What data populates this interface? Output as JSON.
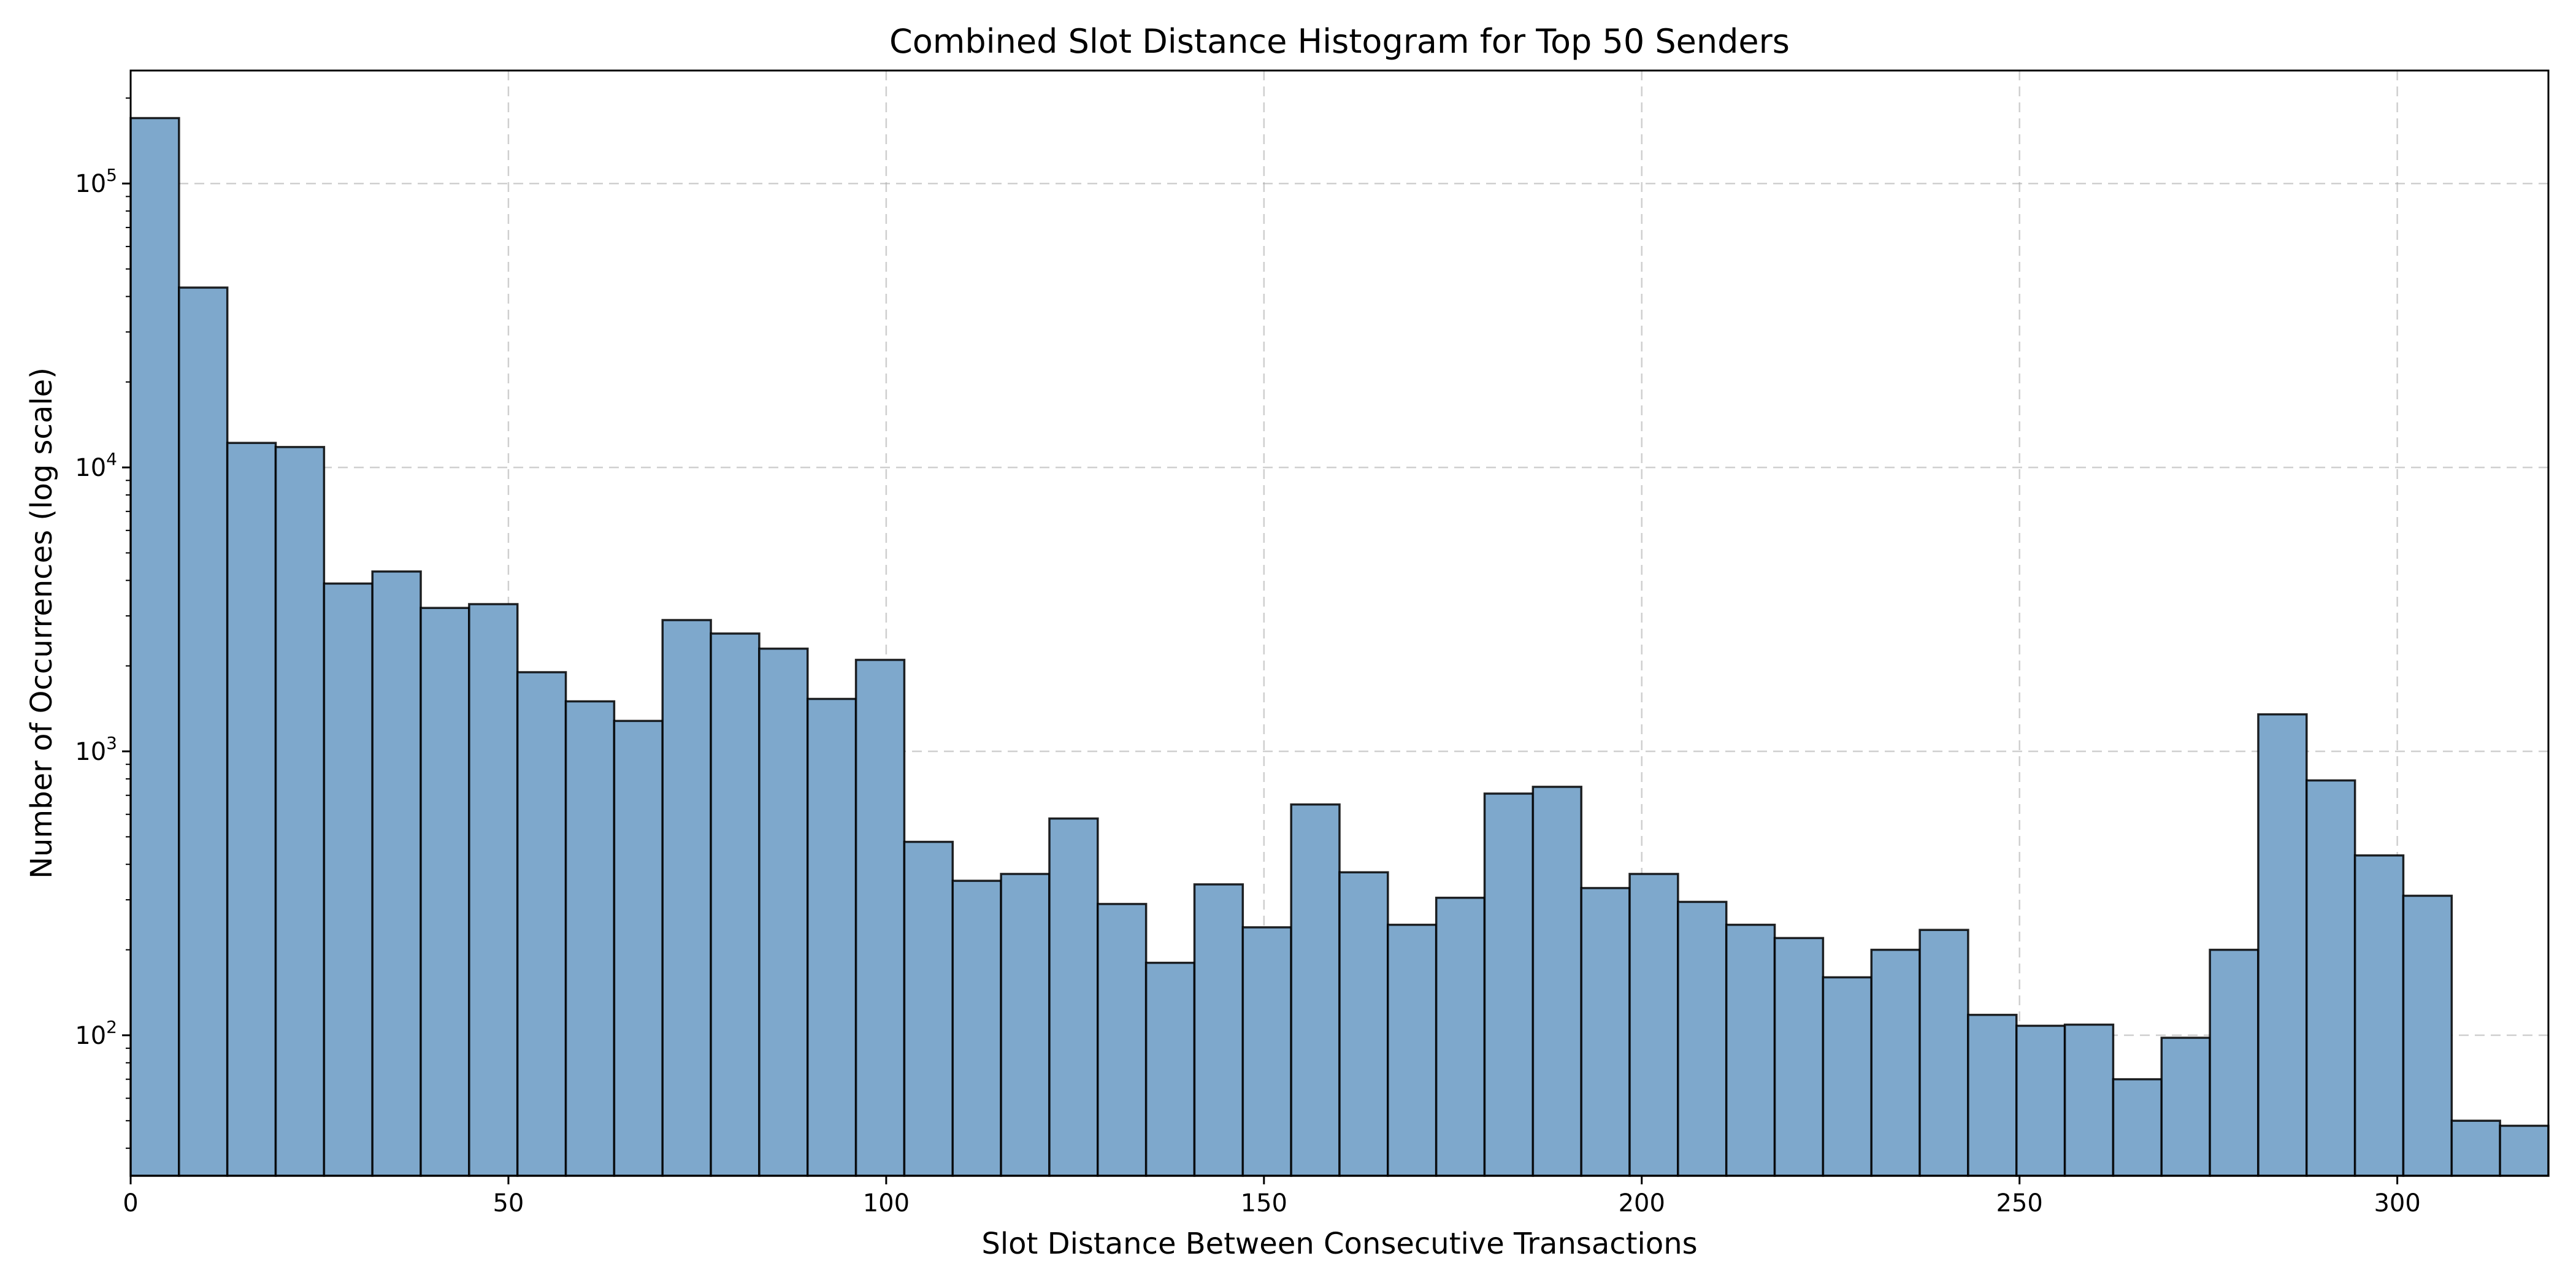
{
  "chart_data": {
    "type": "bar",
    "title": "Combined Slot Distance Histogram for Top 50 Senders",
    "xlabel": "Slot Distance Between Consecutive Transactions",
    "ylabel": "Number of Occurrences (log scale)",
    "yscale": "log",
    "xlim": [
      0,
      320
    ],
    "ylim": [
      32,
      250000
    ],
    "grid": true,
    "bar_color": "#7ea8cc",
    "edge_color": "#000000",
    "x_ticks": [
      {
        "value": 0,
        "label": "0"
      },
      {
        "value": 50,
        "label": "50"
      },
      {
        "value": 100,
        "label": "100"
      },
      {
        "value": 150,
        "label": "150"
      },
      {
        "value": 200,
        "label": "200"
      },
      {
        "value": 250,
        "label": "250"
      },
      {
        "value": 300,
        "label": "300"
      }
    ],
    "y_ticks": [
      {
        "value": 100,
        "base": "10",
        "exp": "2"
      },
      {
        "value": 1000,
        "base": "10",
        "exp": "3"
      },
      {
        "value": 10000,
        "base": "10",
        "exp": "4"
      },
      {
        "value": 100000,
        "base": "10",
        "exp": "5"
      }
    ],
    "bin_width": 6.4,
    "bin_starts": [
      0,
      6.4,
      12.8,
      19.2,
      25.6,
      32,
      38.4,
      44.8,
      51.2,
      57.6,
      64,
      70.4,
      76.8,
      83.2,
      89.6,
      96,
      102.4,
      108.8,
      115.2,
      121.6,
      128,
      134.4,
      140.8,
      147.2,
      153.6,
      160,
      166.4,
      172.8,
      179.2,
      185.6,
      192,
      198.4,
      204.8,
      211.2,
      217.6,
      224,
      230.4,
      236.8,
      243.2,
      249.6,
      256,
      262.4,
      268.8,
      275.2,
      281.6,
      288,
      294.4,
      300.8,
      307.2,
      313.6
    ],
    "values": [
      170000,
      43000,
      12200,
      11800,
      3900,
      4300,
      3200,
      3300,
      1900,
      1500,
      1280,
      2900,
      2600,
      2300,
      1530,
      2100,
      480,
      350,
      370,
      580,
      290,
      180,
      340,
      240,
      650,
      375,
      245,
      305,
      710,
      750,
      330,
      370,
      295,
      245,
      220,
      160,
      200,
      235,
      118,
      108,
      109,
      70,
      98,
      200,
      1350,
      790,
      430,
      310,
      50,
      48
    ]
  }
}
